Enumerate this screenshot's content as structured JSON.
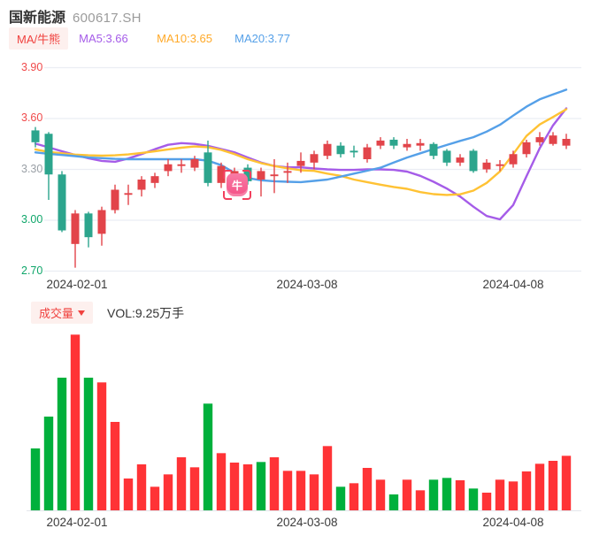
{
  "header": {
    "title": "国新能源",
    "code": "600617.SH"
  },
  "legend": {
    "indicator_label": "MA/牛熊",
    "ma5": "MA5:3.66",
    "ma10": "MA10:3.65",
    "ma20": "MA20:3.77"
  },
  "volume_header": {
    "label": "成交量",
    "value": "VOL:9.25万手"
  },
  "bull_marker": {
    "glyph": "牛"
  },
  "colors": {
    "candle_up": "#e2444a",
    "candle_down": "#2ca58d",
    "vol_up": "#ff3336",
    "vol_down": "#00b03c",
    "ma5": "#a55ce8",
    "ma10": "#ffc234",
    "ma20": "#55a0e8",
    "grid": "#ebedf3",
    "baseline": "#e3e6ec",
    "tick_red": "#f0494a",
    "tick_gray": "#9aa0a6",
    "tick_green": "#0fa66a"
  },
  "chart_data": {
    "type": "candlestick",
    "title": "国新能源 600617.SH daily K-line with MA5/MA10/MA20 and volume",
    "y_axis": {
      "ticks": [
        "3.90",
        "3.60",
        "3.30",
        "3.00",
        "2.70"
      ],
      "tick_colors": [
        "red",
        "red",
        "gray",
        "green",
        "green"
      ],
      "range": [
        2.7,
        3.9
      ],
      "grid": true
    },
    "x_axis": {
      "labels": [
        "2024-02-01",
        "2024-03-08",
        "2024-04-08"
      ],
      "label_positions": [
        87,
        347,
        580
      ]
    },
    "volume_axis": {
      "unit": "万手",
      "latest": 9.25,
      "max_scale": 30
    },
    "bull_marker_index": 15,
    "candles": [
      {
        "o": 3.53,
        "h": 3.55,
        "l": 3.43,
        "c": 3.46,
        "v": 10.5,
        "vc": "g"
      },
      {
        "o": 3.51,
        "h": 3.52,
        "l": 3.12,
        "c": 3.27,
        "v": 15.9,
        "vc": "g"
      },
      {
        "o": 3.27,
        "h": 3.29,
        "l": 2.93,
        "c": 2.94,
        "v": 22.5,
        "vc": "g"
      },
      {
        "o": 2.86,
        "h": 3.06,
        "l": 2.72,
        "c": 3.04,
        "v": 29.8,
        "vc": "r"
      },
      {
        "o": 3.04,
        "h": 3.05,
        "l": 2.84,
        "c": 2.9,
        "v": 22.5,
        "vc": "g"
      },
      {
        "o": 2.92,
        "h": 3.08,
        "l": 2.85,
        "c": 3.06,
        "v": 21.7,
        "vc": "r"
      },
      {
        "o": 3.06,
        "h": 3.21,
        "l": 3.04,
        "c": 3.18,
        "v": 15.0,
        "vc": "r"
      },
      {
        "o": 3.15,
        "h": 3.21,
        "l": 3.09,
        "c": 3.16,
        "v": 5.4,
        "vc": "r"
      },
      {
        "o": 3.18,
        "h": 3.26,
        "l": 3.14,
        "c": 3.24,
        "v": 7.8,
        "vc": "r"
      },
      {
        "o": 3.22,
        "h": 3.28,
        "l": 3.19,
        "c": 3.26,
        "v": 4.0,
        "vc": "r"
      },
      {
        "o": 3.29,
        "h": 3.36,
        "l": 3.26,
        "c": 3.33,
        "v": 6.1,
        "vc": "r"
      },
      {
        "o": 3.32,
        "h": 3.36,
        "l": 3.28,
        "c": 3.33,
        "v": 9.0,
        "vc": "r"
      },
      {
        "o": 3.31,
        "h": 3.38,
        "l": 3.29,
        "c": 3.36,
        "v": 7.3,
        "vc": "r"
      },
      {
        "o": 3.4,
        "h": 3.47,
        "l": 3.2,
        "c": 3.22,
        "v": 18.1,
        "vc": "g"
      },
      {
        "o": 3.22,
        "h": 3.34,
        "l": 3.19,
        "c": 3.32,
        "v": 9.7,
        "vc": "r"
      },
      {
        "o": 3.21,
        "h": 3.31,
        "l": 3.17,
        "c": 3.29,
        "v": 8.1,
        "vc": "r"
      },
      {
        "o": 3.31,
        "h": 3.33,
        "l": 3.21,
        "c": 3.23,
        "v": 7.8,
        "vc": "r"
      },
      {
        "o": 3.24,
        "h": 3.31,
        "l": 3.14,
        "c": 3.29,
        "v": 8.2,
        "vc": "g"
      },
      {
        "o": 3.26,
        "h": 3.36,
        "l": 3.16,
        "c": 3.27,
        "v": 9.0,
        "vc": "r"
      },
      {
        "o": 3.28,
        "h": 3.34,
        "l": 3.22,
        "c": 3.29,
        "v": 6.7,
        "vc": "r"
      },
      {
        "o": 3.32,
        "h": 3.4,
        "l": 3.28,
        "c": 3.35,
        "v": 6.7,
        "vc": "r"
      },
      {
        "o": 3.34,
        "h": 3.41,
        "l": 3.3,
        "c": 3.39,
        "v": 6.1,
        "vc": "r"
      },
      {
        "o": 3.38,
        "h": 3.47,
        "l": 3.36,
        "c": 3.45,
        "v": 10.9,
        "vc": "r"
      },
      {
        "o": 3.44,
        "h": 3.46,
        "l": 3.37,
        "c": 3.39,
        "v": 4.0,
        "vc": "g"
      },
      {
        "o": 3.41,
        "h": 3.44,
        "l": 3.37,
        "c": 3.4,
        "v": 4.6,
        "vc": "r"
      },
      {
        "o": 3.36,
        "h": 3.45,
        "l": 3.34,
        "c": 3.43,
        "v": 7.2,
        "vc": "r"
      },
      {
        "o": 3.44,
        "h": 3.49,
        "l": 3.42,
        "c": 3.47,
        "v": 5.2,
        "vc": "r"
      },
      {
        "o": 3.475,
        "h": 3.49,
        "l": 3.42,
        "c": 3.44,
        "v": 2.7,
        "vc": "g"
      },
      {
        "o": 3.43,
        "h": 3.48,
        "l": 3.41,
        "c": 3.45,
        "v": 5.2,
        "vc": "r"
      },
      {
        "o": 3.44,
        "h": 3.48,
        "l": 3.41,
        "c": 3.455,
        "v": 3.4,
        "vc": "r"
      },
      {
        "o": 3.45,
        "h": 3.46,
        "l": 3.36,
        "c": 3.38,
        "v": 5.2,
        "vc": "g"
      },
      {
        "o": 3.41,
        "h": 3.42,
        "l": 3.32,
        "c": 3.34,
        "v": 5.5,
        "vc": "g"
      },
      {
        "o": 3.34,
        "h": 3.39,
        "l": 3.32,
        "c": 3.37,
        "v": 5.1,
        "vc": "r"
      },
      {
        "o": 3.41,
        "h": 3.42,
        "l": 3.28,
        "c": 3.29,
        "v": 3.7,
        "vc": "g"
      },
      {
        "o": 3.3,
        "h": 3.36,
        "l": 3.28,
        "c": 3.34,
        "v": 3.0,
        "vc": "r"
      },
      {
        "o": 3.32,
        "h": 3.355,
        "l": 3.29,
        "c": 3.33,
        "v": 5.2,
        "vc": "r"
      },
      {
        "o": 3.33,
        "h": 3.41,
        "l": 3.31,
        "c": 3.39,
        "v": 4.9,
        "vc": "r"
      },
      {
        "o": 3.39,
        "h": 3.475,
        "l": 3.37,
        "c": 3.46,
        "v": 6.6,
        "vc": "r"
      },
      {
        "o": 3.46,
        "h": 3.52,
        "l": 3.44,
        "c": 3.49,
        "v": 7.9,
        "vc": "r"
      },
      {
        "o": 3.45,
        "h": 3.52,
        "l": 3.44,
        "c": 3.5,
        "v": 8.4,
        "vc": "r"
      },
      {
        "o": 3.44,
        "h": 3.51,
        "l": 3.42,
        "c": 3.48,
        "v": 9.25,
        "vc": "r"
      }
    ],
    "ma_series": [
      {
        "name": "MA5",
        "color_key": "ma5",
        "latest": 3.66,
        "values": [
          3.452,
          3.43,
          3.407,
          3.385,
          3.365,
          3.35,
          3.345,
          3.364,
          3.39,
          3.419,
          3.445,
          3.455,
          3.45,
          3.439,
          3.42,
          3.4,
          3.37,
          3.34,
          3.32,
          3.312,
          3.312,
          3.305,
          3.3,
          3.297,
          3.297,
          3.3,
          3.3,
          3.297,
          3.287,
          3.262,
          3.227,
          3.187,
          3.14,
          3.08,
          3.025,
          3.005,
          3.09,
          3.26,
          3.425,
          3.56,
          3.66
        ]
      },
      {
        "name": "MA10",
        "color_key": "ma10",
        "latest": 3.65,
        "values": [
          3.418,
          3.403,
          3.395,
          3.387,
          3.383,
          3.381,
          3.383,
          3.388,
          3.397,
          3.407,
          3.418,
          3.428,
          3.435,
          3.431,
          3.415,
          3.39,
          3.36,
          3.337,
          3.32,
          3.306,
          3.295,
          3.291,
          3.275,
          3.262,
          3.24,
          3.225,
          3.21,
          3.196,
          3.185,
          3.166,
          3.154,
          3.149,
          3.153,
          3.175,
          3.22,
          3.288,
          3.39,
          3.497,
          3.565,
          3.609,
          3.655
        ]
      },
      {
        "name": "MA20",
        "color_key": "ma20",
        "latest": 3.77,
        "values": [
          3.4,
          3.392,
          3.385,
          3.378,
          3.37,
          3.366,
          3.362,
          3.36,
          3.36,
          3.36,
          3.36,
          3.36,
          3.36,
          3.351,
          3.325,
          3.28,
          3.249,
          3.236,
          3.23,
          3.227,
          3.225,
          3.232,
          3.24,
          3.257,
          3.275,
          3.292,
          3.31,
          3.34,
          3.37,
          3.395,
          3.42,
          3.444,
          3.468,
          3.49,
          3.523,
          3.563,
          3.617,
          3.67,
          3.713,
          3.742,
          3.77
        ]
      }
    ]
  }
}
